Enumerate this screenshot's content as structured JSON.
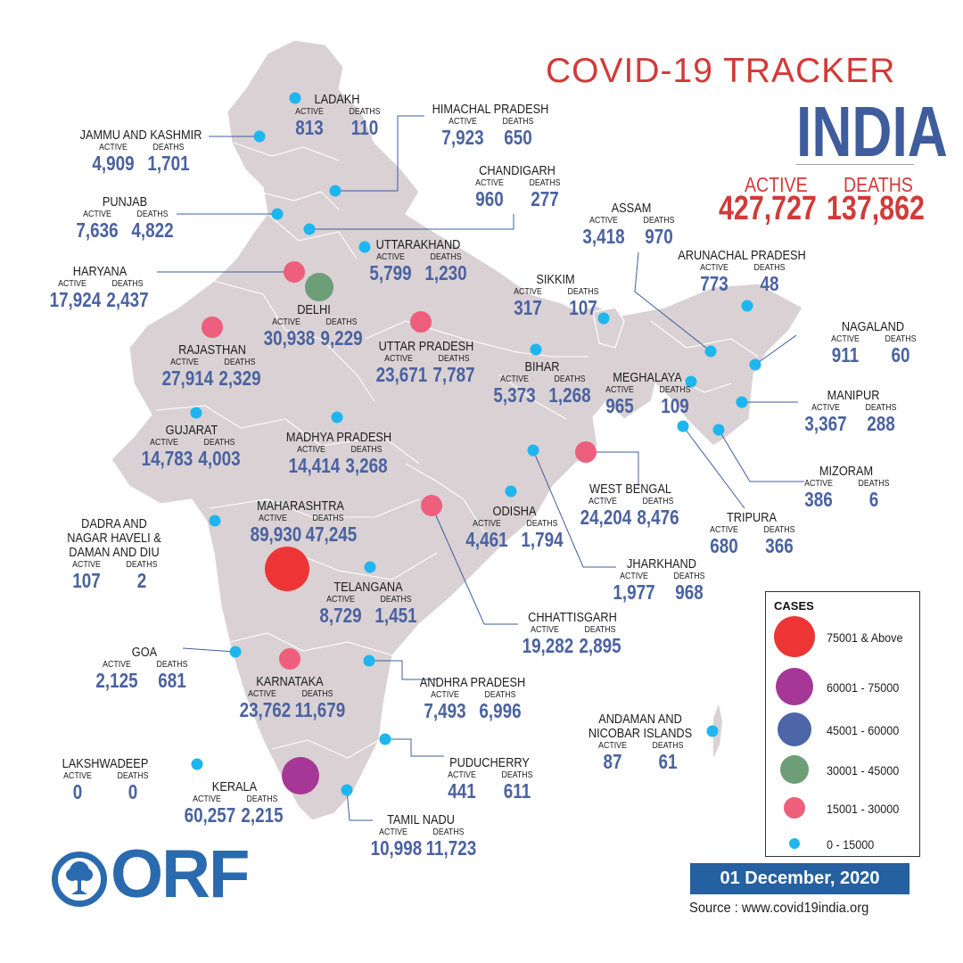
{
  "header": {
    "title": "COVID-19 TRACKER",
    "country": "INDIA",
    "active_label": "ACTIVE",
    "deaths_label": "DEATHS",
    "total_active": "427,727",
    "total_deaths": "137,862"
  },
  "column_labels": {
    "active": "ACTIVE",
    "deaths": "DEATHS"
  },
  "states": [
    {
      "name": "LADAKH",
      "active": "813",
      "deaths": "110",
      "range": "0 - 15000"
    },
    {
      "name": "JAMMU AND KASHMIR",
      "active": "4,909",
      "deaths": "1,701",
      "range": "0 - 15000"
    },
    {
      "name": "HIMACHAL PRADESH",
      "active": "7,923",
      "deaths": "650",
      "range": "0 - 15000"
    },
    {
      "name": "CHANDIGARH",
      "active": "960",
      "deaths": "277",
      "range": "0 - 15000"
    },
    {
      "name": "PUNJAB",
      "active": "7,636",
      "deaths": "4,822",
      "range": "0 - 15000"
    },
    {
      "name": "UTTARAKHAND",
      "active": "5,799",
      "deaths": "1,230",
      "range": "0 - 15000"
    },
    {
      "name": "HARYANA",
      "active": "17,924",
      "deaths": "2,437",
      "range": "15001 - 30000"
    },
    {
      "name": "DELHI",
      "active": "30,938",
      "deaths": "9,229",
      "range": "30001 - 45000"
    },
    {
      "name": "RAJASTHAN",
      "active": "27,914",
      "deaths": "2,329",
      "range": "15001 - 30000"
    },
    {
      "name": "UTTAR PRADESH",
      "active": "23,671",
      "deaths": "7,787",
      "range": "15001 - 30000"
    },
    {
      "name": "SIKKIM",
      "active": "317",
      "deaths": "107",
      "range": "0 - 15000"
    },
    {
      "name": "ASSAM",
      "active": "3,418",
      "deaths": "970",
      "range": "0 - 15000"
    },
    {
      "name": "ARUNACHAL PRADESH",
      "active": "773",
      "deaths": "48",
      "range": "0 - 15000"
    },
    {
      "name": "NAGALAND",
      "active": "911",
      "deaths": "60",
      "range": "0 - 15000"
    },
    {
      "name": "BIHAR",
      "active": "5,373",
      "deaths": "1,268",
      "range": "0 - 15000"
    },
    {
      "name": "MEGHALAYA",
      "active": "965",
      "deaths": "109",
      "range": "0 - 15000"
    },
    {
      "name": "MANIPUR",
      "active": "3,367",
      "deaths": "288",
      "range": "0 - 15000"
    },
    {
      "name": "GUJARAT",
      "active": "14,783",
      "deaths": "4,003",
      "range": "0 - 15000"
    },
    {
      "name": "MADHYA PRADESH",
      "active": "14,414",
      "deaths": "3,268",
      "range": "0 - 15000"
    },
    {
      "name": "MIZORAM",
      "active": "386",
      "deaths": "6",
      "range": "0 - 15000"
    },
    {
      "name": "WEST BENGAL",
      "active": "24,204",
      "deaths": "8,476",
      "range": "15001 - 30000"
    },
    {
      "name": "TRIPURA",
      "active": "680",
      "deaths": "366",
      "range": "0 - 15000"
    },
    {
      "name": "MAHARASHTRA",
      "active": "89,930",
      "deaths": "47,245",
      "range": "75001 & Above"
    },
    {
      "name": "ODISHA",
      "active": "4,461",
      "deaths": "1,794",
      "range": "0 - 15000"
    },
    {
      "name": "DADRA AND\nNAGAR HAVELI &\nDAMAN AND DIU",
      "active": "107",
      "deaths": "2",
      "range": "0 - 15000"
    },
    {
      "name": "JHARKHAND",
      "active": "1,977",
      "deaths": "968",
      "range": "0 - 15000"
    },
    {
      "name": "TELANGANA",
      "active": "8,729",
      "deaths": "1,451",
      "range": "0 - 15000"
    },
    {
      "name": "CHHATTISGARH",
      "active": "19,282",
      "deaths": "2,895",
      "range": "15001 - 30000"
    },
    {
      "name": "GOA",
      "active": "2,125",
      "deaths": "681",
      "range": "0 - 15000"
    },
    {
      "name": "KARNATAKA",
      "active": "23,762",
      "deaths": "11,679",
      "range": "15001 - 30000"
    },
    {
      "name": "ANDHRA PRADESH",
      "active": "7,493",
      "deaths": "6,996",
      "range": "0 - 15000"
    },
    {
      "name": "ANDAMAN AND\nNICOBAR ISLANDS",
      "active": "87",
      "deaths": "61",
      "range": "0 - 15000"
    },
    {
      "name": "LAKSHWADEEP",
      "active": "0",
      "deaths": "0",
      "range": "0 - 15000"
    },
    {
      "name": "PUDUCHERRY",
      "active": "441",
      "deaths": "611",
      "range": "0 - 15000"
    },
    {
      "name": "KERALA",
      "active": "60,257",
      "deaths": "2,215",
      "range": "60001 - 75000"
    },
    {
      "name": "TAMIL NADU",
      "active": "10,998",
      "deaths": "11,723",
      "range": "0 - 15000"
    }
  ],
  "legend": {
    "title": "CASES",
    "items": [
      {
        "label": "75001 & Above",
        "color": "#ee3535"
      },
      {
        "label": "60001 - 75000",
        "color": "#a63796"
      },
      {
        "label": "45001 - 60000",
        "color": "#4d66a8"
      },
      {
        "label": "30001 - 45000",
        "color": "#6e9e78"
      },
      {
        "label": "15001 - 30000",
        "color": "#ee5e7d"
      },
      {
        "label": "0 - 15000",
        "color": "#1eb6ee"
      }
    ]
  },
  "footer": {
    "date": "01 December, 2020",
    "source": "Source : www.covid19india.org",
    "logo": "ORF"
  },
  "colors": {
    "map_fill": "#d9d1d4",
    "title_red": "#d23a38",
    "value_blue": "#4a62a0",
    "date_bar": "#2560a0"
  }
}
